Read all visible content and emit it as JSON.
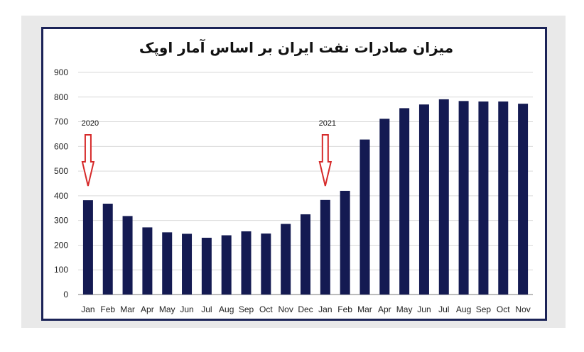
{
  "chart_data": {
    "type": "bar",
    "title": "میزان صادرات نفت ایران بر اساس آمار اوپک",
    "categories": [
      "Jan",
      "Feb",
      "Mar",
      "Apr",
      "May",
      "Jun",
      "Jul",
      "Aug",
      "Sep",
      "Oct",
      "Nov",
      "Dec",
      "Jan",
      "Feb",
      "Mar",
      "Apr",
      "May",
      "Jun",
      "Jul",
      "Aug",
      "Sep",
      "Oct",
      "Nov"
    ],
    "values": [
      382,
      368,
      318,
      272,
      252,
      246,
      230,
      240,
      256,
      247,
      286,
      325,
      383,
      420,
      628,
      712,
      755,
      770,
      791,
      784,
      782,
      782,
      773
    ],
    "ylim": [
      0,
      900
    ],
    "yticks": [
      0,
      100,
      200,
      300,
      400,
      500,
      600,
      700,
      800,
      900
    ],
    "xlabel": "",
    "ylabel": "",
    "grid": true,
    "bar_color": "#141a52",
    "annotations": [
      {
        "text": "2020",
        "category_index": 0,
        "arrow_color": "#d62a2a"
      },
      {
        "text": "2021",
        "category_index": 12,
        "arrow_color": "#d62a2a"
      }
    ]
  }
}
